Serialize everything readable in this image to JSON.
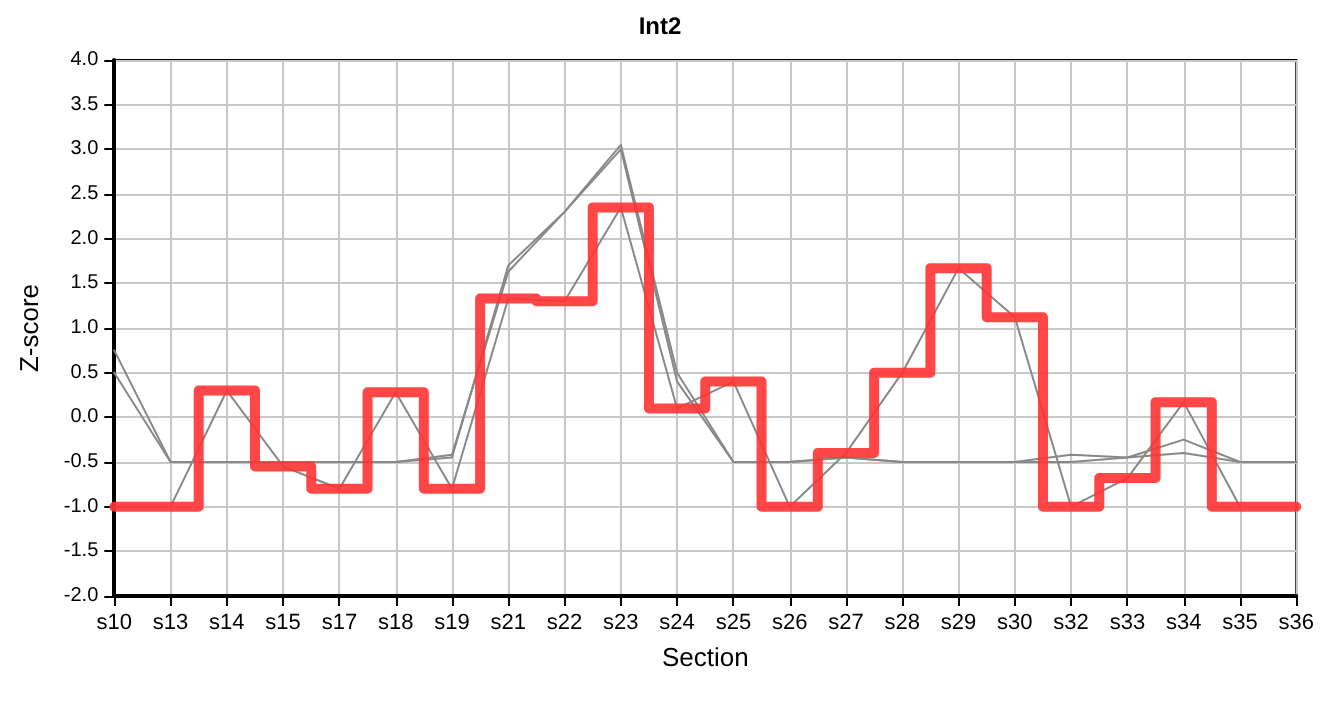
{
  "chart_data": {
    "type": "line",
    "title": "Int2",
    "xlabel": "Section",
    "ylabel": "Z-score",
    "categories": [
      "s10",
      "s13",
      "s14",
      "s15",
      "s17",
      "s18",
      "s19",
      "s21",
      "s22",
      "s23",
      "s24",
      "s25",
      "s26",
      "s27",
      "s28",
      "s29",
      "s30",
      "s32",
      "s33",
      "s34",
      "s35",
      "s36"
    ],
    "series": [
      {
        "color": "#888888",
        "values": [
          0.75,
          -0.5,
          -0.5,
          -0.5,
          -0.5,
          -0.5,
          -0.45,
          1.7,
          2.3,
          3.05,
          0.5,
          -0.5,
          -0.5,
          -0.45,
          -0.5,
          -0.5,
          -0.5,
          -0.42,
          -0.45,
          -0.25,
          -0.5,
          -0.5
        ]
      },
      {
        "color": "#888888",
        "values": [
          0.5,
          -0.5,
          -0.5,
          -0.5,
          -0.5,
          -0.5,
          -0.42,
          1.63,
          2.3,
          3.0,
          0.4,
          -0.5,
          -0.5,
          -0.45,
          -0.5,
          -0.5,
          -0.5,
          -0.5,
          -0.45,
          -0.4,
          -0.5,
          -0.5
        ]
      },
      {
        "color": "#888888",
        "values": [
          -1.0,
          -1.0,
          0.3,
          -0.55,
          -0.8,
          0.28,
          -0.8,
          1.33,
          1.3,
          2.35,
          0.1,
          0.4,
          -1.0,
          -0.4,
          0.5,
          1.67,
          1.12,
          -1.0,
          -0.68,
          0.17,
          -1.0,
          null
        ]
      },
      {
        "type": "step",
        "color": "#ff3333",
        "values": [
          -1.0,
          -1.0,
          0.3,
          -0.55,
          -0.8,
          0.28,
          -0.8,
          1.33,
          1.3,
          2.35,
          0.1,
          0.4,
          -1.0,
          -0.4,
          0.5,
          1.67,
          1.12,
          -1.0,
          -0.68,
          0.17,
          -1.0,
          -1.0
        ]
      }
    ],
    "ylim": [
      -2.0,
      4.0
    ],
    "yticks": [
      {
        "value": -2,
        "label": "-2.0"
      },
      -1.5,
      {
        "value": -1,
        "label": "-1.0"
      },
      -0.5,
      {
        "value": 0,
        "label": "0.0"
      },
      0.5,
      {
        "value": 1,
        "label": "1.0"
      },
      1.5,
      {
        "value": 2,
        "label": "2.0"
      },
      2.5,
      {
        "value": 3,
        "label": "3.0"
      },
      3.5,
      {
        "value": 4,
        "label": "4.0"
      }
    ],
    "grid": true,
    "marker": "none"
  }
}
